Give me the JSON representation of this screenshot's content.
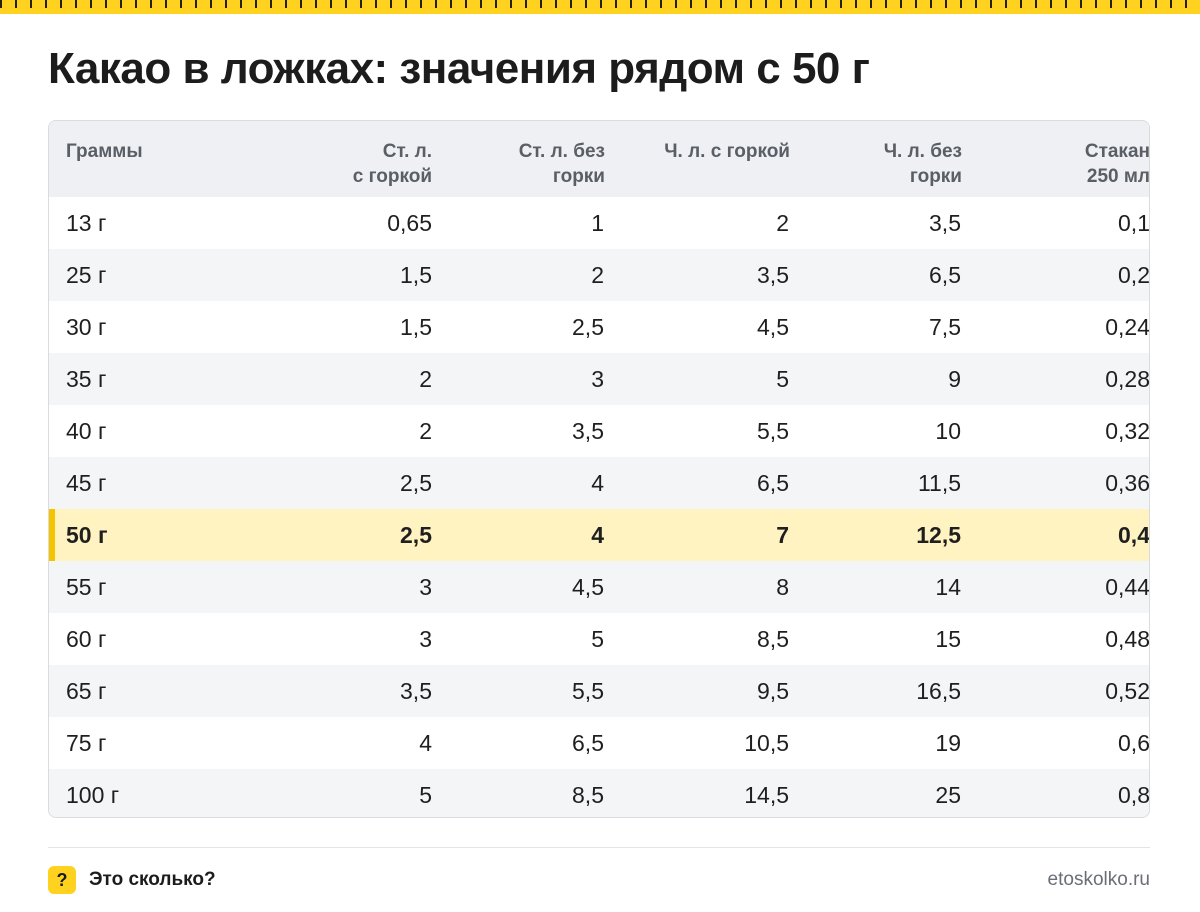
{
  "title": "Какао в ложках: значения рядом с 50 г",
  "table": {
    "headers": [
      [
        "Граммы"
      ],
      [
        "Ст. л.",
        "с горкой"
      ],
      [
        "Ст. л. без",
        "горки"
      ],
      [
        "Ч. л. с горкой"
      ],
      [
        "Ч. л. без",
        "горки"
      ],
      [
        "Стакан",
        "250 мл"
      ]
    ],
    "rows": [
      [
        "13 г",
        "0,65",
        "1",
        "2",
        "3,5",
        "0,1"
      ],
      [
        "25 г",
        "1,5",
        "2",
        "3,5",
        "6,5",
        "0,2"
      ],
      [
        "30 г",
        "1,5",
        "2,5",
        "4,5",
        "7,5",
        "0,24"
      ],
      [
        "35 г",
        "2",
        "3",
        "5",
        "9",
        "0,28"
      ],
      [
        "40 г",
        "2",
        "3,5",
        "5,5",
        "10",
        "0,32"
      ],
      [
        "45 г",
        "2,5",
        "4",
        "6,5",
        "11,5",
        "0,36"
      ],
      [
        "50 г",
        "2,5",
        "4",
        "7",
        "12,5",
        "0,4"
      ],
      [
        "55 г",
        "3",
        "4,5",
        "8",
        "14",
        "0,44"
      ],
      [
        "60 г",
        "3",
        "5",
        "8,5",
        "15",
        "0,48"
      ],
      [
        "65 г",
        "3,5",
        "5,5",
        "9,5",
        "16,5",
        "0,52"
      ],
      [
        "75 г",
        "4",
        "6,5",
        "10,5",
        "19",
        "0,6"
      ],
      [
        "100 г",
        "5",
        "8,5",
        "14,5",
        "25",
        "0,8"
      ]
    ],
    "highlight_row_index": 6
  },
  "footer": {
    "badge": "?",
    "brand": "Это сколько?",
    "site": "etoskolko.ru"
  },
  "colors": {
    "accent": "#FFD21F",
    "highlight_row": "#FFF3C2",
    "highlight_bar": "#F5C400",
    "header_bg": "#EEF0F3",
    "stripe_bg": "#F4F5F7"
  }
}
